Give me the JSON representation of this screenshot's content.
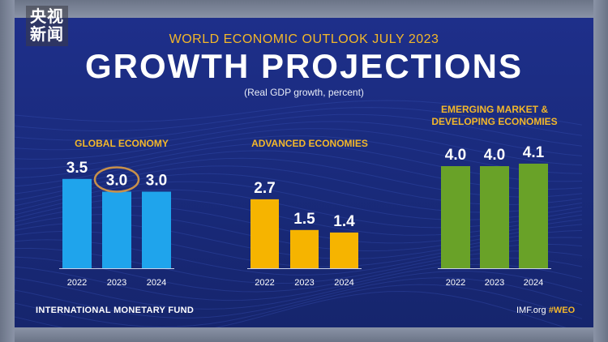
{
  "overlay_logo": {
    "line1": "央视",
    "line2": "新闻"
  },
  "header": {
    "supertitle": "WORLD ECONOMIC OUTLOOK JULY 2023",
    "title": "GROWTH PROJECTIONS",
    "subtitle": "(Real GDP growth, percent)"
  },
  "footer": {
    "left": "INTERNATIONAL MONETARY FUND",
    "site": "IMF.org",
    "hashtag": "#WEO"
  },
  "colors": {
    "global": "#1fa4ec",
    "advanced": "#f6b400",
    "emerging": "#69a228",
    "accent": "#f3b72a",
    "highlight_ring": "#c8904a"
  },
  "chart_data": [
    {
      "type": "bar",
      "title": "GLOBAL ECONOMY",
      "categories": [
        "2022",
        "2023",
        "2024"
      ],
      "values": [
        3.5,
        3.0,
        3.0
      ],
      "labels": [
        "3.5",
        "3.0",
        "3.0"
      ],
      "highlighted_category": "2023",
      "color": "#1fa4ec"
    },
    {
      "type": "bar",
      "title": "ADVANCED ECONOMIES",
      "categories": [
        "2022",
        "2023",
        "2024"
      ],
      "values": [
        2.7,
        1.5,
        1.4
      ],
      "labels": [
        "2.7",
        "1.5",
        "1.4"
      ],
      "color": "#f6b400"
    },
    {
      "type": "bar",
      "title": "EMERGING MARKET & DEVELOPING ECONOMIES",
      "title_lines": [
        "EMERGING MARKET &",
        "DEVELOPING ECONOMIES"
      ],
      "categories": [
        "2022",
        "2023",
        "2024"
      ],
      "values": [
        4.0,
        4.0,
        4.1
      ],
      "labels": [
        "4.0",
        "4.0",
        "4.1"
      ],
      "color": "#69a228"
    }
  ]
}
